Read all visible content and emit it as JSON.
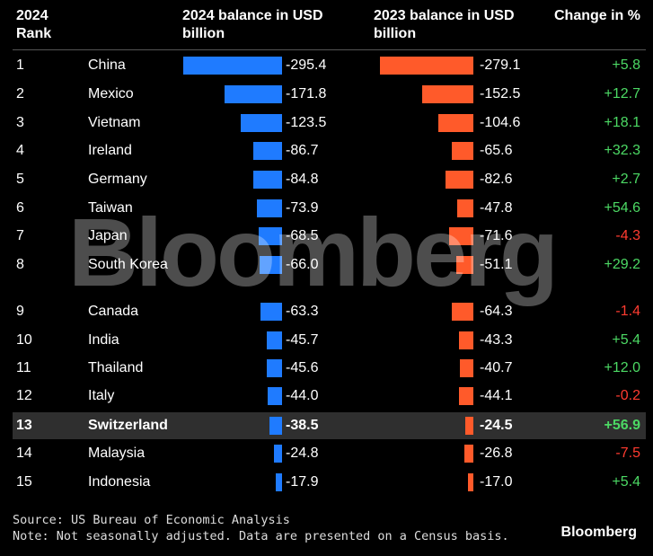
{
  "header": {
    "rank": "2024\nRank",
    "balance_2024": "2024 balance in USD billion",
    "balance_2023": "2023 balance in USD billion",
    "change": "Change in %"
  },
  "colors": {
    "bar_2024": "#1f7bff",
    "bar_2023": "#ff5a2a",
    "positive": "#4cd964",
    "negative": "#ff3b30",
    "highlight_row": "#2f2f2f"
  },
  "chart_data": {
    "type": "table",
    "columns": [
      "2024 Rank",
      "",
      "2024 balance in USD billion",
      "2023 balance in USD billion",
      "Change in %"
    ],
    "rows": [
      {
        "rank": "1",
        "country": "China",
        "v2024": -295.4,
        "l2024": "-295.4",
        "v2023": -279.1,
        "l2023": "-279.1",
        "change": "+5.8",
        "dir": "pos"
      },
      {
        "rank": "2",
        "country": "Mexico",
        "v2024": -171.8,
        "l2024": "-171.8",
        "v2023": -152.5,
        "l2023": "-152.5",
        "change": "+12.7",
        "dir": "pos"
      },
      {
        "rank": "3",
        "country": "Vietnam",
        "v2024": -123.5,
        "l2024": "-123.5",
        "v2023": -104.6,
        "l2023": "-104.6",
        "change": "+18.1",
        "dir": "pos"
      },
      {
        "rank": "4",
        "country": "Ireland",
        "v2024": -86.7,
        "l2024": "-86.7",
        "v2023": -65.6,
        "l2023": "-65.6",
        "change": "+32.3",
        "dir": "pos"
      },
      {
        "rank": "5",
        "country": "Germany",
        "v2024": -84.8,
        "l2024": "-84.8",
        "v2023": -82.6,
        "l2023": "-82.6",
        "change": "+2.7",
        "dir": "pos"
      },
      {
        "rank": "6",
        "country": "Taiwan",
        "v2024": -73.9,
        "l2024": "-73.9",
        "v2023": -47.8,
        "l2023": "-47.8",
        "change": "+54.6",
        "dir": "pos"
      },
      {
        "rank": "7",
        "country": "Japan",
        "v2024": -68.5,
        "l2024": "-68.5",
        "v2023": -71.6,
        "l2023": "-71.6",
        "change": "-4.3",
        "dir": "neg"
      },
      {
        "rank": "8",
        "country": "South Korea",
        "v2024": -66.0,
        "l2024": "-66.0",
        "v2023": -51.1,
        "l2023": "-51.1",
        "change": "+29.2",
        "dir": "pos"
      },
      {
        "rank": "9",
        "country": "Canada",
        "v2024": -63.3,
        "l2024": "-63.3",
        "v2023": -64.3,
        "l2023": "-64.3",
        "change": "-1.4",
        "dir": "neg"
      },
      {
        "rank": "10",
        "country": "India",
        "v2024": -45.7,
        "l2024": "-45.7",
        "v2023": -43.3,
        "l2023": "-43.3",
        "change": "+5.4",
        "dir": "pos"
      },
      {
        "rank": "11",
        "country": "Thailand",
        "v2024": -45.6,
        "l2024": "-45.6",
        "v2023": -40.7,
        "l2023": "-40.7",
        "change": "+12.0",
        "dir": "pos"
      },
      {
        "rank": "12",
        "country": "Italy",
        "v2024": -44.0,
        "l2024": "-44.0",
        "v2023": -44.1,
        "l2023": "-44.1",
        "change": "-0.2",
        "dir": "neg"
      },
      {
        "rank": "13",
        "country": "Switzerland",
        "v2024": -38.5,
        "l2024": "-38.5",
        "v2023": -24.5,
        "l2023": "-24.5",
        "change": "+56.9",
        "dir": "pos",
        "highlight": true
      },
      {
        "rank": "14",
        "country": "Malaysia",
        "v2024": -24.8,
        "l2024": "-24.8",
        "v2023": -26.8,
        "l2023": "-26.8",
        "change": "-7.5",
        "dir": "neg"
      },
      {
        "rank": "15",
        "country": "Indonesia",
        "v2024": -17.9,
        "l2024": "-17.9",
        "v2023": -17.0,
        "l2023": "-17.0",
        "change": "+5.4",
        "dir": "pos"
      }
    ],
    "bar_scale_max": 295.4
  },
  "watermark": "Bloomberg",
  "footer": {
    "source": "Source: US Bureau of Economic Analysis",
    "note": "Note: Not seasonally adjusted. Data are presented on a Census basis."
  },
  "brand": "Bloomberg"
}
